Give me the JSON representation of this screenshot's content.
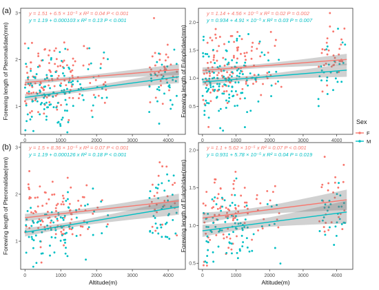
{
  "figure": {
    "panel_labels": [
      "(a)",
      "(b)"
    ],
    "legend": {
      "title": "Sex",
      "entries": [
        {
          "key": "F",
          "color": "#F8766D"
        },
        {
          "key": "M",
          "color": "#00BFC4"
        }
      ]
    }
  },
  "chart_data": [
    {
      "type": "scatter",
      "row": "(a)",
      "ylabel": "Forewing length of Pteromalidae(mm)",
      "xlabel": "",
      "xlim": [
        -120,
        4480
      ],
      "ylim": [
        0.4,
        3.1
      ],
      "xticks": [
        0,
        1000,
        2000,
        3000,
        4000
      ],
      "yticks": [
        1,
        2,
        3
      ],
      "grid": false,
      "stats": [
        {
          "text": "y = 1.51 + 6.5 × 10⁻⁵ x    R² = 0.04    P < 0.001",
          "color": "#F8766D"
        },
        {
          "text": "y = 1.19 + 0.000103 x    R² = 0.13    P < 0.001",
          "color": "#00BFC4"
        }
      ],
      "series": [
        {
          "name": "F",
          "color": "#F8766D",
          "intercept": 1.51,
          "slope": 6.5e-05,
          "band": 0.07,
          "n": 160,
          "sd": 0.42,
          "seed": 11
        },
        {
          "name": "M",
          "color": "#00BFC4",
          "intercept": 1.19,
          "slope": 0.000103,
          "band": 0.08,
          "n": 150,
          "sd": 0.38,
          "seed": 12
        }
      ]
    },
    {
      "type": "scatter",
      "row": "(a)",
      "ylabel": "Forewing length of Eulophidae(mm)",
      "xlabel": "",
      "xlim": [
        -120,
        4480
      ],
      "ylim": [
        0.0,
        2.25
      ],
      "xticks": [
        0,
        1000,
        2000,
        3000,
        4000
      ],
      "yticks": [
        0.5,
        1.0,
        1.5,
        2.0
      ],
      "grid": false,
      "stats": [
        {
          "text": "y = 1.14 + 4.56 × 10⁻⁵ x    R² = 0.02    P = 0.002",
          "color": "#F8766D"
        },
        {
          "text": "y = 0.934 + 4.91 × 10⁻⁵ x    R² = 0.03    P = 0.007",
          "color": "#00BFC4"
        }
      ],
      "series": [
        {
          "name": "F",
          "color": "#F8766D",
          "intercept": 1.14,
          "slope": 4.56e-05,
          "band": 0.06,
          "n": 150,
          "sd": 0.33,
          "seed": 21
        },
        {
          "name": "M",
          "color": "#00BFC4",
          "intercept": 0.934,
          "slope": 4.91e-05,
          "band": 0.07,
          "n": 150,
          "sd": 0.32,
          "seed": 22
        }
      ]
    },
    {
      "type": "scatter",
      "row": "(b)",
      "ylabel": "Forewing length of Pteromalidae(mm)",
      "xlabel": "Altitude(m)",
      "xlim": [
        -120,
        4480
      ],
      "ylim": [
        0.4,
        3.1
      ],
      "xticks": [
        0,
        1000,
        2000,
        3000,
        4000
      ],
      "yticks": [
        1,
        2,
        3
      ],
      "grid": false,
      "stats": [
        {
          "text": "y = 1.5 + 8.36 × 10⁻⁵ x    R² = 0.07    P < 0.001",
          "color": "#F8766D"
        },
        {
          "text": "y = 1.19 + 0.000126 x    R² = 0.18    P < 0.001",
          "color": "#00BFC4"
        }
      ],
      "series": [
        {
          "name": "F",
          "color": "#F8766D",
          "intercept": 1.5,
          "slope": 8.36e-05,
          "band": 0.09,
          "n": 120,
          "sd": 0.4,
          "seed": 31
        },
        {
          "name": "M",
          "color": "#00BFC4",
          "intercept": 1.19,
          "slope": 0.000126,
          "band": 0.1,
          "n": 120,
          "sd": 0.36,
          "seed": 32
        }
      ]
    },
    {
      "type": "scatter",
      "row": "(b)",
      "ylabel": "Forewing length of Eulophidae(mm)",
      "xlabel": "Altitude(m)",
      "xlim": [
        -120,
        4480
      ],
      "ylim": [
        0.42,
        2.1
      ],
      "xticks": [
        0,
        1000,
        2000,
        3000,
        4000
      ],
      "yticks": [
        0.5,
        1.0,
        1.5,
        2.0
      ],
      "grid": false,
      "stats": [
        {
          "text": "y = 1.1 + 5.62 × 10⁻⁵ x    R² = 0.07    P < 0.001",
          "color": "#F8766D"
        },
        {
          "text": "y = 0.931 + 5.78 × 10⁻⁵ x    R² = 0.04    P = 0.019",
          "color": "#00BFC4"
        }
      ],
      "series": [
        {
          "name": "F",
          "color": "#F8766D",
          "intercept": 1.1,
          "slope": 5.62e-05,
          "band": 0.08,
          "n": 110,
          "sd": 0.25,
          "seed": 41
        },
        {
          "name": "M",
          "color": "#00BFC4",
          "intercept": 0.931,
          "slope": 5.78e-05,
          "band": 0.09,
          "n": 110,
          "sd": 0.25,
          "seed": 42
        }
      ]
    }
  ]
}
